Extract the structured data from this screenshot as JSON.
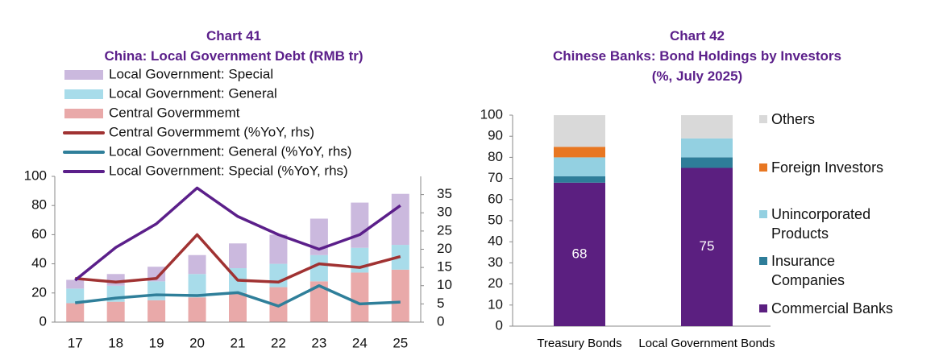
{
  "chart_data": [
    {
      "type": "combo",
      "title": "Chart 41",
      "subtitle": "China: Local Government Debt (RMB tr)",
      "categories": [
        "17",
        "18",
        "19",
        "20",
        "21",
        "22",
        "23",
        "24",
        "25"
      ],
      "series": [
        {
          "name": "Local Government: Special",
          "type": "bar",
          "color": "#cbb9de",
          "values": [
            6,
            8,
            10,
            13,
            17,
            20,
            25,
            31,
            35
          ]
        },
        {
          "name": "Local Government: General",
          "type": "bar",
          "color": "#a8dcea",
          "values": [
            10,
            11,
            13,
            16,
            17,
            16,
            18,
            17,
            17
          ]
        },
        {
          "name": "Central Govermmemt",
          "type": "bar",
          "color": "#e9a9a9",
          "values": [
            13,
            14,
            15,
            17,
            20,
            24,
            28,
            34,
            36
          ]
        },
        {
          "name": "Central Govermmemt  (%YoY, rhs)",
          "type": "line",
          "axis": "y2",
          "color": "#a03232",
          "values": [
            12,
            11,
            12,
            24,
            11.5,
            11,
            16,
            15,
            18
          ]
        },
        {
          "name": "Local Government: General (%YoY, rhs)",
          "type": "line",
          "axis": "y2",
          "color": "#2f7f9a",
          "values": [
            5.3,
            6.6,
            7.5,
            7.3,
            8.1,
            4.4,
            10,
            5,
            5.5
          ]
        },
        {
          "name": "Local Government: Special (%YoY, rhs)",
          "type": "line",
          "axis": "y2",
          "color": "#5b1f8a",
          "values": [
            11.5,
            20.5,
            27,
            36.8,
            29,
            24,
            20,
            24,
            32
          ]
        }
      ],
      "ylim": [
        0,
        100
      ],
      "yticks": [
        0,
        20,
        40,
        60,
        80,
        100
      ],
      "y2lim": [
        0,
        40
      ],
      "y2ticks": [
        0,
        5,
        10,
        15,
        20,
        25,
        30,
        35
      ],
      "stacked": true
    },
    {
      "type": "bar",
      "title": "Chart 42",
      "subtitle": "Chinese Banks: Bond Holdings by Investors (%, July 2025)",
      "categories": [
        "Treasury Bonds",
        "Local Government Bonds"
      ],
      "series": [
        {
          "name": "Others",
          "color": "#d9d9d9",
          "values": [
            15,
            11
          ]
        },
        {
          "name": "Foreign Investors",
          "color": "#e87722",
          "values": [
            5,
            0
          ]
        },
        {
          "name": "Unincorporated Products",
          "color": "#93d0e1",
          "values": [
            9,
            9
          ]
        },
        {
          "name": "Insurance Companies",
          "color": "#2e7d99",
          "values": [
            3,
            5
          ]
        },
        {
          "name": "Commercial Banks",
          "color": "#5b1f80",
          "values": [
            68,
            75
          ],
          "show_values": true
        }
      ],
      "ylim": [
        0,
        100
      ],
      "yticks": [
        0,
        10,
        20,
        30,
        40,
        50,
        60,
        70,
        80,
        90,
        100
      ],
      "stacked": true,
      "legend": "right"
    }
  ]
}
